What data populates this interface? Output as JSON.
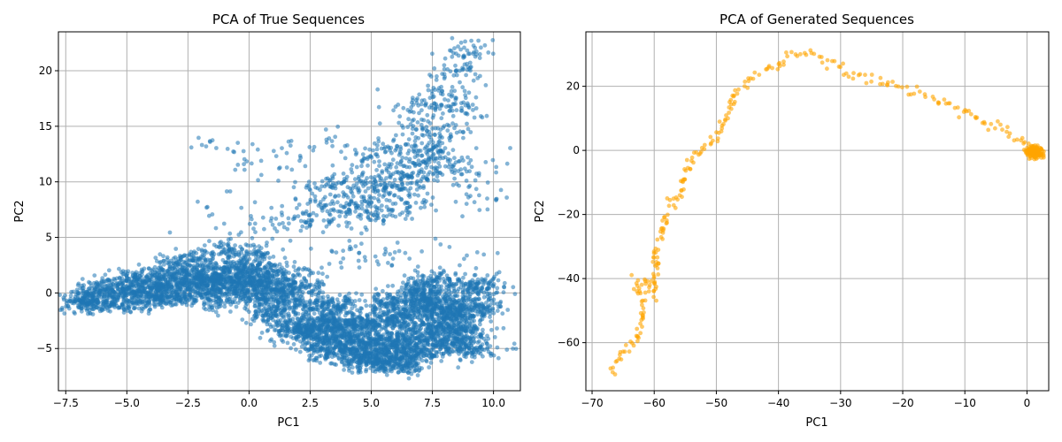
{
  "chart_data": [
    {
      "type": "scatter",
      "title": "PCA of True Sequences",
      "xlabel": "PC1",
      "ylabel": "PC2",
      "xlim": [
        -7.8,
        11.1
      ],
      "ylim": [
        -8.8,
        23.5
      ],
      "xticks": [
        -7.5,
        -5.0,
        -2.5,
        0.0,
        2.5,
        5.0,
        7.5,
        10.0
      ],
      "xtick_labels": [
        "−7.5",
        "−5.0",
        "−2.5",
        "0.0",
        "2.5",
        "5.0",
        "7.5",
        "10.0"
      ],
      "yticks": [
        -5,
        0,
        5,
        10,
        15,
        20
      ],
      "ytick_labels": [
        "−5",
        "0",
        "5",
        "10",
        "15",
        "20"
      ],
      "grid": true,
      "color": "#1f77b4",
      "alpha": 0.55,
      "clusters": [
        {
          "points": [
            [
              -7.0,
              -0.7
            ],
            [
              -6.5,
              -0.5
            ],
            [
              -6.0,
              -0.3
            ],
            [
              -5.5,
              -0.1
            ],
            [
              -5.0,
              0.1
            ],
            [
              -4.5,
              0.3
            ],
            [
              -4.0,
              0.5
            ],
            [
              -3.5,
              0.6
            ],
            [
              -3.0,
              0.8
            ],
            [
              -2.5,
              0.9
            ],
            [
              -2.0,
              1.0
            ],
            [
              -1.5,
              1.1
            ],
            [
              -1.0,
              1.2
            ],
            [
              -0.5,
              1.3
            ],
            [
              0.0,
              1.2
            ],
            [
              0.5,
              1.0
            ],
            [
              1.0,
              0.8
            ],
            [
              1.5,
              0.6
            ],
            [
              -6.8,
              -1.0
            ],
            [
              -6.0,
              -1.2
            ],
            [
              -5.2,
              -1.1
            ],
            [
              -4.3,
              -0.9
            ],
            [
              -3.5,
              -0.6
            ],
            [
              -2.8,
              -0.3
            ],
            [
              -2.0,
              0.0
            ],
            [
              -1.2,
              0.3
            ],
            [
              -0.4,
              0.4
            ],
            [
              0.4,
              0.2
            ],
            [
              1.2,
              0.0
            ],
            [
              -5.5,
              0.8
            ],
            [
              -4.8,
              1.2
            ],
            [
              -4.0,
              1.5
            ],
            [
              -3.2,
              1.6
            ],
            [
              -2.4,
              1.9
            ],
            [
              -1.6,
              2.2
            ],
            [
              -0.8,
              2.4
            ],
            [
              0.0,
              2.3
            ],
            [
              0.8,
              2.0
            ],
            [
              -6.2,
              0.4
            ],
            [
              -3.8,
              -0.2
            ],
            [
              -1.8,
              1.5
            ],
            [
              -0.2,
              -0.4
            ],
            [
              1.8,
              1.6
            ],
            [
              2.2,
              0.5
            ],
            [
              -2.2,
              3.2
            ],
            [
              -1.0,
              3.8
            ],
            [
              0.3,
              3.5
            ],
            [
              -3.0,
              2.6
            ],
            [
              -1.4,
              -0.9
            ],
            [
              0.6,
              -0.8
            ]
          ],
          "spread": 0.45,
          "count": 2600
        },
        {
          "points": [
            [
              3.0,
              -3.5
            ],
            [
              4.0,
              -4.0
            ],
            [
              5.0,
              -4.5
            ],
            [
              6.0,
              -4.2
            ],
            [
              7.0,
              -3.8
            ],
            [
              8.0,
              -3.0
            ],
            [
              8.5,
              -2.0
            ],
            [
              7.5,
              -1.5
            ],
            [
              6.5,
              -2.0
            ],
            [
              5.5,
              -2.5
            ],
            [
              4.5,
              -2.8
            ],
            [
              3.5,
              -2.5
            ],
            [
              2.5,
              -2.8
            ],
            [
              6.0,
              -5.5
            ],
            [
              7.0,
              -5.2
            ],
            [
              5.0,
              -5.8
            ],
            [
              8.0,
              -4.5
            ],
            [
              8.8,
              -3.5
            ],
            [
              4.0,
              -5.2
            ],
            [
              3.0,
              -5.0
            ],
            [
              7.2,
              -0.5
            ],
            [
              8.2,
              -0.8
            ],
            [
              6.8,
              0.2
            ],
            [
              5.8,
              -1.0
            ],
            [
              2.0,
              -3.6
            ],
            [
              1.0,
              -2.0
            ],
            [
              2.0,
              -1.0
            ],
            [
              9.2,
              -1.5
            ],
            [
              9.5,
              0.5
            ],
            [
              6.2,
              -6.5
            ],
            [
              4.8,
              -6.2
            ],
            [
              9.0,
              -5.0
            ],
            [
              3.5,
              -1.2
            ],
            [
              7.8,
              1.0
            ]
          ],
          "spread": 0.55,
          "count": 3800
        },
        {
          "points": [
            [
              4.0,
              9.5
            ],
            [
              5.0,
              10.5
            ],
            [
              6.0,
              11.0
            ],
            [
              7.0,
              11.5
            ],
            [
              5.5,
              9.5
            ],
            [
              6.5,
              10.0
            ],
            [
              4.5,
              8.0
            ],
            [
              3.5,
              7.5
            ],
            [
              7.5,
              13.0
            ],
            [
              8.0,
              14.5
            ],
            [
              7.0,
              15.0
            ],
            [
              8.5,
              16.5
            ],
            [
              8.0,
              18.0
            ],
            [
              8.5,
              20.0
            ],
            [
              8.8,
              21.8
            ],
            [
              6.0,
              13.0
            ],
            [
              5.0,
              12.5
            ],
            [
              3.0,
              9.5
            ],
            [
              2.5,
              6.5
            ],
            [
              6.5,
              8.0
            ],
            [
              7.8,
              12.0
            ],
            [
              8.4,
              10.5
            ],
            [
              5.2,
              7.0
            ],
            [
              6.8,
              17.0
            ]
          ],
          "spread": 0.6,
          "count": 900
        },
        {
          "points": [
            [
              -1.0,
              13.0
            ],
            [
              0.2,
              12.0
            ],
            [
              1.0,
              10.5
            ],
            [
              1.8,
              8.0
            ],
            [
              0.5,
              6.5
            ],
            [
              -0.5,
              5.0
            ],
            [
              2.5,
              4.5
            ],
            [
              3.0,
              2.5
            ],
            [
              4.5,
              3.5
            ],
            [
              5.5,
              4.0
            ],
            [
              6.5,
              3.0
            ],
            [
              -1.5,
              7.0
            ],
            [
              2.0,
              13.0
            ],
            [
              3.2,
              14.0
            ],
            [
              9.2,
              8.0
            ],
            [
              9.5,
              11.5
            ],
            [
              9.6,
              3.5
            ],
            [
              9.8,
              -6.0
            ],
            [
              10.0,
              -4.5
            ]
          ],
          "spread": 0.9,
          "count": 220
        }
      ]
    },
    {
      "type": "scatter",
      "title": "PCA of Generated Sequences",
      "xlabel": "PC1",
      "ylabel": "PC2",
      "xlim": [
        -71,
        3.5
      ],
      "ylim": [
        -75,
        37
      ],
      "xticks": [
        -70,
        -60,
        -50,
        -40,
        -30,
        -20,
        -10,
        0
      ],
      "xtick_labels": [
        "−70",
        "−60",
        "−50",
        "−40",
        "−30",
        "−20",
        "−10",
        "0"
      ],
      "yticks": [
        -60,
        -40,
        -20,
        0,
        20
      ],
      "ytick_labels": [
        "−60",
        "−40",
        "−20",
        "0",
        "20"
      ],
      "grid": true,
      "color": "#ffa500",
      "alpha": 0.6,
      "path": [
        [
          -67,
          -69
        ],
        [
          -65,
          -63
        ],
        [
          -63,
          -60
        ],
        [
          -62,
          -55
        ],
        [
          -62,
          -47
        ],
        [
          -63,
          -40
        ],
        [
          -61,
          -41
        ],
        [
          -60,
          -45
        ],
        [
          -59.5,
          -38
        ],
        [
          -60,
          -30
        ],
        [
          -58.5,
          -24
        ],
        [
          -57.5,
          -18
        ],
        [
          -56,
          -14
        ],
        [
          -55,
          -8
        ],
        [
          -54.5,
          -4
        ],
        [
          -53.5,
          -1
        ],
        [
          -52,
          0
        ],
        [
          -50.5,
          3
        ],
        [
          -49,
          8
        ],
        [
          -48,
          12
        ],
        [
          -47.5,
          16
        ],
        [
          -47,
          17
        ],
        [
          -45.5,
          20
        ],
        [
          -44,
          23
        ],
        [
          -42,
          24
        ],
        [
          -40,
          27
        ],
        [
          -38,
          30
        ],
        [
          -36,
          30
        ],
        [
          -34,
          29
        ],
        [
          -32,
          28
        ],
        [
          -30,
          26
        ],
        [
          -28,
          24
        ],
        [
          -26,
          23
        ],
        [
          -24,
          22
        ],
        [
          -22,
          20
        ],
        [
          -20,
          19
        ],
        [
          -18,
          18
        ],
        [
          -16,
          17
        ],
        [
          -14,
          16
        ],
        [
          -12,
          14
        ],
        [
          -10,
          12
        ],
        [
          -8,
          10
        ],
        [
          -6,
          8
        ],
        [
          -4,
          6
        ],
        [
          -2,
          4
        ],
        [
          0,
          2
        ],
        [
          1,
          0
        ],
        [
          2,
          -1
        ]
      ]
    }
  ]
}
